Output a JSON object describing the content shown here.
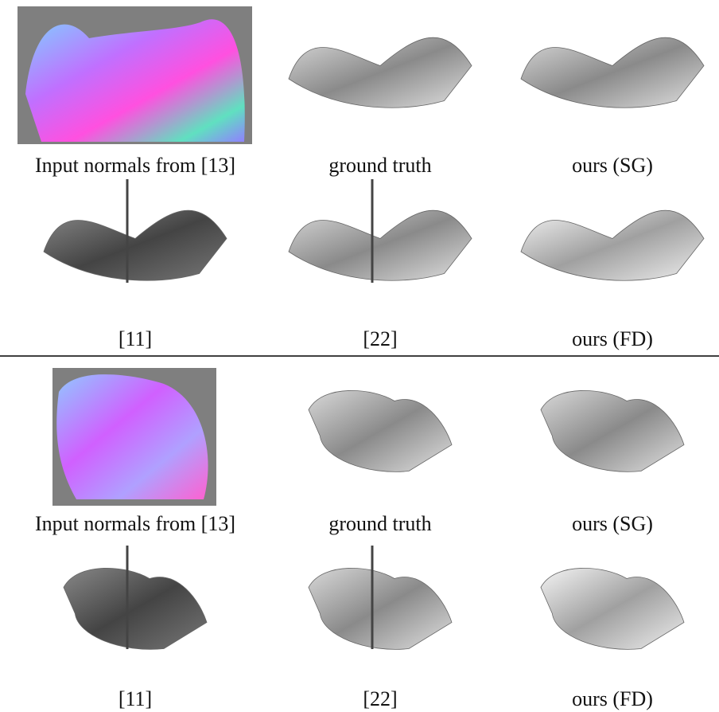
{
  "panels": [
    {
      "captions": [
        [
          "Input normals from [13]",
          "ground truth",
          "ours (SG)"
        ],
        [
          "[11]",
          "[22]",
          "ours (FD)"
        ]
      ]
    },
    {
      "captions": [
        [
          "Input normals from [13]",
          "ground truth",
          "ours (SG)"
        ],
        [
          "[11]",
          "[22]",
          "ours (FD)"
        ]
      ]
    }
  ]
}
